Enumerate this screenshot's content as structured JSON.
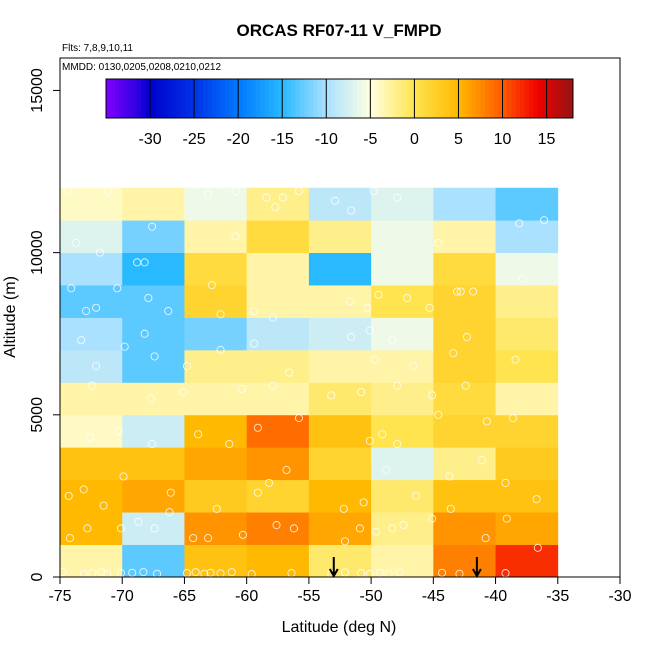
{
  "chart_data": {
    "type": "heatmap",
    "title": "ORCAS RF07-11 V_FMPD",
    "subtitle_flights": "Flts: 7,8,9,10,11",
    "subtitle_dates": "MMDD: 0130,0205,0208,0210,0212",
    "xlabel": "Latitude (deg N)",
    "ylabel": "Altitude (m)",
    "xlim": [
      -75,
      -30
    ],
    "ylim": [
      0,
      16000
    ],
    "x_ticks": [
      -75,
      -70,
      -65,
      -60,
      -55,
      -50,
      -45,
      -40,
      -35,
      -30
    ],
    "x_tick_labels": [
      "-75",
      "-70",
      "-65",
      "-60",
      "-55",
      "-50",
      "-45",
      "-40",
      "-35",
      "-30"
    ],
    "y_ticks": [
      0,
      5000,
      10000,
      15000
    ],
    "y_tick_labels": [
      "0",
      "5000",
      "10000",
      "15000"
    ],
    "colorbar": {
      "range": [
        -35,
        18
      ],
      "ticks": [
        -30,
        -25,
        -20,
        -15,
        -10,
        -5,
        0,
        5,
        10,
        15
      ],
      "tick_labels": [
        "-30",
        "-25",
        "-20",
        "-15",
        "-10",
        "-5",
        "0",
        "5",
        "10",
        "15"
      ]
    },
    "lat_edges": [
      -75,
      -70,
      -65,
      -60,
      -55,
      -50,
      -45,
      -40,
      -35
    ],
    "alt_edges": [
      0,
      1000,
      2000,
      3000,
      4000,
      5000,
      6000,
      7000,
      8000,
      9000,
      10000,
      11000,
      12000
    ],
    "grid_values": [
      [
        -3,
        -13,
        4,
        5,
        -1,
        -3,
        8,
        12
      ],
      [
        5,
        -8,
        7,
        8,
        6,
        -2,
        7,
        6
      ],
      [
        5,
        6,
        3,
        2,
        5,
        -1,
        4,
        4
      ],
      [
        4,
        4,
        6,
        7,
        2,
        -7,
        -2,
        3
      ],
      [
        -4,
        -8,
        5,
        9,
        4,
        0,
        2,
        2
      ],
      [
        -3,
        -3,
        -3,
        -3,
        -1,
        -2,
        1,
        -3
      ],
      [
        -9,
        -13,
        -2,
        -2,
        -3,
        -3,
        2,
        0
      ],
      [
        -10,
        -13,
        -12,
        -9,
        -8,
        -6,
        2,
        -1
      ],
      [
        -13,
        -13,
        2,
        -3,
        -3,
        0,
        2,
        -2
      ],
      [
        -10,
        -15,
        1,
        -3,
        -15,
        -6,
        1,
        -6
      ],
      [
        -7,
        -12,
        -3,
        1,
        -2,
        -6,
        -3,
        -10
      ],
      [
        -4,
        -3,
        -6,
        -2,
        -9,
        -7,
        -10,
        -13
      ]
    ],
    "arrow_latitudes": [
      -53,
      -41.5
    ],
    "observation_points": [
      [
        -74.8,
        150
      ],
      [
        -73.1,
        100
      ],
      [
        -72.4,
        120
      ],
      [
        -71.7,
        150
      ],
      [
        -71.2,
        100
      ],
      [
        -70.1,
        120
      ],
      [
        -69.2,
        130
      ],
      [
        -68.3,
        150
      ],
      [
        -67.2,
        100
      ],
      [
        -64.8,
        120
      ],
      [
        -64.1,
        150
      ],
      [
        -63.4,
        100
      ],
      [
        -62.9,
        130
      ],
      [
        -62.1,
        110
      ],
      [
        -61.2,
        150
      ],
      [
        -59.6,
        90
      ],
      [
        -56.4,
        120
      ],
      [
        -53.2,
        100
      ],
      [
        -52.1,
        140
      ],
      [
        -50.8,
        120
      ],
      [
        -50.1,
        90
      ],
      [
        -49.3,
        130
      ],
      [
        -48.6,
        100
      ],
      [
        -47.7,
        140
      ],
      [
        -44.3,
        130
      ],
      [
        -42.9,
        100
      ],
      [
        -39.2,
        120
      ],
      [
        -74.2,
        1200
      ],
      [
        -72.8,
        1500
      ],
      [
        -70.1,
        1500
      ],
      [
        -68.7,
        1700
      ],
      [
        -67.4,
        1500
      ],
      [
        -66.2,
        2000
      ],
      [
        -64.3,
        1200
      ],
      [
        -63.1,
        1200
      ],
      [
        -60.3,
        1300
      ],
      [
        -57.6,
        1600
      ],
      [
        -56.2,
        1500
      ],
      [
        -52.1,
        1100
      ],
      [
        -50.9,
        1500
      ],
      [
        -49.6,
        1400
      ],
      [
        -48.3,
        1500
      ],
      [
        -47.4,
        1600
      ],
      [
        -45.1,
        1800
      ],
      [
        -43.6,
        2100
      ],
      [
        -40.8,
        1200
      ],
      [
        -39.1,
        1800
      ],
      [
        -36.6,
        900
      ],
      [
        -74.3,
        2500
      ],
      [
        -73.1,
        2700
      ],
      [
        -71.5,
        2200
      ],
      [
        -69.9,
        3100
      ],
      [
        -66.1,
        2600
      ],
      [
        -62.4,
        2100
      ],
      [
        -59.1,
        2600
      ],
      [
        -58.2,
        2900
      ],
      [
        -56.8,
        3300
      ],
      [
        -52.2,
        2100
      ],
      [
        -50.6,
        2300
      ],
      [
        -48.8,
        3300
      ],
      [
        -46.4,
        2500
      ],
      [
        -43.7,
        3100
      ],
      [
        -41.1,
        3600
      ],
      [
        -39.2,
        2900
      ],
      [
        -36.7,
        2400
      ],
      [
        -72.6,
        4300
      ],
      [
        -70.3,
        4500
      ],
      [
        -67.6,
        4100
      ],
      [
        -63.9,
        4400
      ],
      [
        -61.4,
        4100
      ],
      [
        -59.1,
        4600
      ],
      [
        -55.8,
        4900
      ],
      [
        -50.1,
        4200
      ],
      [
        -49.1,
        4400
      ],
      [
        -47.9,
        4100
      ],
      [
        -44.6,
        5000
      ],
      [
        -40.7,
        4800
      ],
      [
        -38.6,
        4900
      ],
      [
        -72.4,
        5900
      ],
      [
        -67.7,
        5500
      ],
      [
        -65.1,
        5700
      ],
      [
        -60.4,
        5800
      ],
      [
        -57.9,
        5900
      ],
      [
        -53.2,
        5600
      ],
      [
        -50.8,
        5700
      ],
      [
        -47.9,
        5900
      ],
      [
        -45.1,
        5600
      ],
      [
        -42.4,
        5900
      ],
      [
        -73.3,
        7300
      ],
      [
        -72.1,
        6500
      ],
      [
        -69.8,
        7100
      ],
      [
        -68.2,
        7500
      ],
      [
        -67.4,
        6800
      ],
      [
        -64.8,
        6500
      ],
      [
        -62.1,
        7000
      ],
      [
        -59.4,
        7200
      ],
      [
        -56.6,
        6300
      ],
      [
        -51.6,
        7400
      ],
      [
        -50.1,
        7600
      ],
      [
        -49.7,
        6700
      ],
      [
        -48.3,
        7300
      ],
      [
        -46.6,
        6500
      ],
      [
        -43.4,
        6900
      ],
      [
        -42.3,
        7400
      ],
      [
        -38.4,
        6700
      ],
      [
        -74.1,
        8900
      ],
      [
        -72.9,
        8200
      ],
      [
        -72.1,
        8300
      ],
      [
        -70.4,
        8900
      ],
      [
        -68.8,
        9700
      ],
      [
        -68.2,
        9700
      ],
      [
        -67.9,
        8600
      ],
      [
        -66.3,
        8200
      ],
      [
        -62.8,
        9000
      ],
      [
        -62.1,
        8100
      ],
      [
        -59.4,
        8200
      ],
      [
        -57.9,
        8000
      ],
      [
        -51.7,
        8500
      ],
      [
        -50.3,
        8300
      ],
      [
        -49.4,
        8700
      ],
      [
        -47.1,
        8600
      ],
      [
        -45.3,
        8300
      ],
      [
        -43.1,
        8800
      ],
      [
        -42.8,
        8800
      ],
      [
        -41.8,
        8800
      ],
      [
        -37.8,
        9200
      ],
      [
        -73.7,
        10300
      ],
      [
        -71.8,
        10000
      ],
      [
        -67.6,
        10800
      ],
      [
        -60.9,
        10500
      ],
      [
        -57.7,
        11400
      ],
      [
        -51.6,
        11300
      ],
      [
        -44.6,
        10300
      ],
      [
        -38.1,
        10900
      ],
      [
        -36.1,
        11000
      ],
      [
        -74.3,
        11900
      ],
      [
        -71.1,
        11900
      ],
      [
        -63.1,
        11800
      ],
      [
        -60.9,
        11900
      ],
      [
        -58.4,
        11700
      ],
      [
        -57.1,
        11700
      ],
      [
        -55.8,
        11900
      ],
      [
        -52.9,
        11600
      ],
      [
        -49.8,
        11900
      ],
      [
        -47.9,
        11700
      ]
    ]
  }
}
